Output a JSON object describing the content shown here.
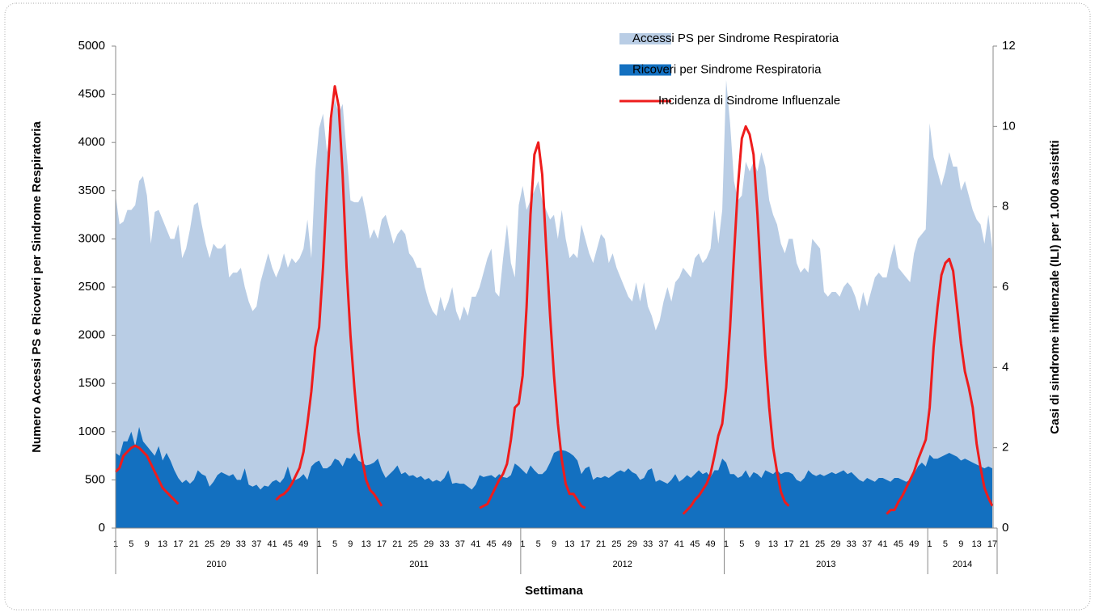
{
  "chart_data": {
    "type": "area-line",
    "y_label": "Numero Accessi PS e Ricoveri per Sindrome Respiratoria",
    "y2_label": "Casi di sindrome influenzale (ILI) per 1.000 assistiti",
    "x_label": "Settimana",
    "year_labels": [
      "2010",
      "2011",
      "2012",
      "2013",
      "2014"
    ],
    "categories": [
      "1",
      null,
      null,
      null,
      "5",
      null,
      null,
      null,
      "9",
      null,
      null,
      null,
      "13",
      null,
      null,
      null,
      "17",
      null,
      null,
      null,
      "21",
      null,
      null,
      null,
      "25",
      null,
      null,
      null,
      "29",
      null,
      null,
      null,
      "33",
      null,
      null,
      null,
      "37",
      null,
      null,
      null,
      "41",
      null,
      null,
      null,
      "45",
      null,
      null,
      null,
      "49",
      null,
      null,
      null,
      "1",
      null,
      null,
      null,
      "5",
      null,
      null,
      null,
      "9",
      null,
      null,
      null,
      "13",
      null,
      null,
      null,
      "17",
      null,
      null,
      null,
      "21",
      null,
      null,
      null,
      "25",
      null,
      null,
      null,
      "29",
      null,
      null,
      null,
      "33",
      null,
      null,
      null,
      "37",
      null,
      null,
      null,
      "41",
      null,
      null,
      null,
      "45",
      null,
      null,
      null,
      "49",
      null,
      null,
      null,
      "1",
      null,
      null,
      null,
      "5",
      null,
      null,
      null,
      "9",
      null,
      null,
      null,
      "13",
      null,
      null,
      null,
      "17",
      null,
      null,
      null,
      "21",
      null,
      null,
      null,
      "25",
      null,
      null,
      null,
      "29",
      null,
      null,
      null,
      "33",
      null,
      null,
      null,
      "37",
      null,
      null,
      null,
      "41",
      null,
      null,
      null,
      "45",
      null,
      null,
      null,
      "49",
      null,
      null,
      null,
      "1",
      null,
      null,
      null,
      "5",
      null,
      null,
      null,
      "9",
      null,
      null,
      null,
      "13",
      null,
      null,
      null,
      "17",
      null,
      null,
      null,
      "21",
      null,
      null,
      null,
      "25",
      null,
      null,
      null,
      "29",
      null,
      null,
      null,
      "33",
      null,
      null,
      null,
      "37",
      null,
      null,
      null,
      "41",
      null,
      null,
      null,
      "45",
      null,
      null,
      null,
      "49",
      null,
      null,
      null,
      "1",
      null,
      null,
      null,
      "5",
      null,
      null,
      null,
      "9",
      null,
      null,
      null,
      "13",
      null,
      null,
      null,
      "17"
    ],
    "series": [
      {
        "name": "Accessi PS per Sindrome Respiratoria",
        "kind": "area",
        "color": "#b9cde5",
        "values": [
          3450,
          3150,
          3180,
          3300,
          3300,
          3350,
          3600,
          3650,
          3450,
          2950,
          3280,
          3300,
          3200,
          3100,
          3000,
          3000,
          3150,
          2800,
          2900,
          3100,
          3350,
          3380,
          3150,
          2950,
          2800,
          2950,
          2900,
          2900,
          2950,
          2600,
          2650,
          2650,
          2700,
          2500,
          2350,
          2250,
          2300,
          2550,
          2700,
          2850,
          2700,
          2600,
          2700,
          2850,
          2700,
          2800,
          2750,
          2800,
          2900,
          3200,
          2800,
          3700,
          4150,
          4300,
          3900,
          4150,
          4450,
          4300,
          4400,
          3900,
          3400,
          3380,
          3380,
          3450,
          3250,
          3000,
          3100,
          3000,
          3200,
          3250,
          3100,
          2950,
          3050,
          3100,
          3050,
          2850,
          2800,
          2700,
          2700,
          2500,
          2350,
          2250,
          2200,
          2400,
          2250,
          2350,
          2500,
          2250,
          2150,
          2300,
          2200,
          2400,
          2400,
          2500,
          2650,
          2800,
          2900,
          2450,
          2400,
          2800,
          3150,
          2750,
          2600,
          3350,
          3550,
          3300,
          3400,
          3500,
          3600,
          3400,
          3300,
          3200,
          3250,
          3000,
          3300,
          3000,
          2800,
          2850,
          2800,
          3150,
          3000,
          2850,
          2750,
          2900,
          3050,
          3000,
          2750,
          2850,
          2700,
          2600,
          2500,
          2400,
          2350,
          2550,
          2350,
          2550,
          2300,
          2200,
          2050,
          2150,
          2350,
          2500,
          2350,
          2550,
          2600,
          2700,
          2650,
          2600,
          2800,
          2850,
          2750,
          2800,
          2900,
          3300,
          2950,
          3300,
          4650,
          4200,
          3600,
          3400,
          3450,
          3800,
          3700,
          3800,
          3700,
          3900,
          3750,
          3400,
          3250,
          3150,
          2950,
          2850,
          3000,
          3000,
          2750,
          2650,
          2700,
          2650,
          3000,
          2950,
          2900,
          2450,
          2400,
          2450,
          2450,
          2400,
          2500,
          2550,
          2500,
          2400,
          2250,
          2450,
          2300,
          2450,
          2600,
          2650,
          2600,
          2600,
          2800,
          2950,
          2700,
          2650,
          2600,
          2550,
          2850,
          3000,
          3050,
          3100,
          4200,
          3850,
          3700,
          3550,
          3700,
          3900,
          3750,
          3750,
          3500,
          3600,
          3450,
          3300,
          3200,
          3150,
          2950,
          3250,
          2900
        ]
      },
      {
        "name": "Ricoveri per Sindrome Respiratoria",
        "kind": "area",
        "color": "#1370c0",
        "values": [
          780,
          750,
          900,
          900,
          1000,
          850,
          1050,
          900,
          850,
          800,
          750,
          850,
          700,
          780,
          700,
          600,
          520,
          470,
          500,
          460,
          500,
          600,
          560,
          540,
          430,
          480,
          550,
          580,
          560,
          540,
          560,
          500,
          500,
          620,
          450,
          430,
          450,
          400,
          440,
          430,
          480,
          500,
          470,
          520,
          640,
          500,
          500,
          520,
          560,
          500,
          640,
          680,
          700,
          620,
          620,
          650,
          720,
          700,
          640,
          730,
          720,
          780,
          700,
          680,
          650,
          660,
          680,
          720,
          600,
          520,
          560,
          600,
          650,
          560,
          580,
          540,
          550,
          520,
          540,
          500,
          520,
          480,
          500,
          480,
          520,
          600,
          460,
          470,
          460,
          460,
          430,
          400,
          450,
          550,
          530,
          540,
          550,
          520,
          560,
          530,
          520,
          550,
          670,
          640,
          600,
          560,
          650,
          600,
          560,
          560,
          600,
          680,
          780,
          800,
          810,
          800,
          780,
          750,
          700,
          560,
          620,
          640,
          500,
          530,
          520,
          540,
          520,
          550,
          580,
          600,
          580,
          620,
          580,
          560,
          500,
          520,
          600,
          620,
          480,
          500,
          480,
          460,
          500,
          560,
          480,
          510,
          550,
          520,
          560,
          600,
          560,
          580,
          530,
          600,
          600,
          720,
          680,
          560,
          560,
          520,
          540,
          600,
          520,
          580,
          560,
          520,
          600,
          580,
          560,
          600,
          560,
          580,
          580,
          560,
          500,
          480,
          520,
          600,
          560,
          540,
          560,
          540,
          560,
          580,
          560,
          580,
          600,
          560,
          580,
          540,
          500,
          480,
          520,
          500,
          480,
          520,
          520,
          500,
          480,
          520,
          520,
          500,
          480,
          500,
          560,
          640,
          680,
          640,
          760,
          720,
          720,
          740,
          760,
          780,
          760,
          740,
          700,
          720,
          700,
          680,
          660,
          640,
          620,
          640,
          620
        ]
      },
      {
        "name": "Incidenza di Sindrome Influenzale",
        "kind": "line",
        "axis": "y2",
        "color": "#ee1c1c",
        "values": [
          1.4,
          1.5,
          1.8,
          1.9,
          2.0,
          2.05,
          2.0,
          1.9,
          1.8,
          1.6,
          1.4,
          1.2,
          1.0,
          0.9,
          0.8,
          0.7,
          0.6,
          null,
          null,
          null,
          null,
          null,
          null,
          null,
          null,
          null,
          null,
          null,
          null,
          null,
          null,
          null,
          null,
          null,
          null,
          null,
          null,
          null,
          null,
          null,
          null,
          0.7,
          0.8,
          0.85,
          0.95,
          1.1,
          1.3,
          1.5,
          1.9,
          2.6,
          3.4,
          4.5,
          5.0,
          6.5,
          8.5,
          10.2,
          11.0,
          10.5,
          8.8,
          6.5,
          4.8,
          3.5,
          2.4,
          1.7,
          1.2,
          0.95,
          0.85,
          0.7,
          0.55,
          null,
          null,
          null,
          null,
          null,
          null,
          null,
          null,
          null,
          null,
          null,
          null,
          null,
          null,
          null,
          null,
          null,
          null,
          null,
          null,
          null,
          null,
          null,
          null,
          0.5,
          0.55,
          0.6,
          0.8,
          1.0,
          1.2,
          1.35,
          1.6,
          2.2,
          3.0,
          3.1,
          3.8,
          5.5,
          7.8,
          9.3,
          9.6,
          8.8,
          7.0,
          5.3,
          3.8,
          2.6,
          1.7,
          1.1,
          0.85,
          0.85,
          0.7,
          0.55,
          0.5,
          null,
          null,
          null,
          null,
          null,
          null,
          null,
          null,
          null,
          null,
          null,
          null,
          null,
          null,
          null,
          null,
          null,
          null,
          null,
          null,
          null,
          null,
          null,
          null,
          0.35,
          0.45,
          0.55,
          0.7,
          0.8,
          0.95,
          1.1,
          1.35,
          1.8,
          2.3,
          2.6,
          3.5,
          5.0,
          6.8,
          8.5,
          9.7,
          10.0,
          9.8,
          9.3,
          7.8,
          6.0,
          4.3,
          3.0,
          2.0,
          1.4,
          0.9,
          0.65,
          0.55,
          null,
          null,
          null,
          null,
          null,
          null,
          null,
          null,
          null,
          null,
          null,
          null,
          null,
          null,
          null,
          null,
          null,
          null,
          null,
          null,
          null,
          null,
          null,
          null,
          0.35,
          0.45,
          0.45,
          0.65,
          0.8,
          1.0,
          1.2,
          1.4,
          1.7,
          1.95,
          2.2,
          3.0,
          4.5,
          5.5,
          6.3,
          6.6,
          6.7,
          6.4,
          5.5,
          4.6,
          3.9,
          3.5,
          3.0,
          2.1,
          1.5,
          1.0,
          0.75,
          0.55
        ]
      }
    ],
    "ylim": [
      0,
      5000
    ],
    "yticks": [
      0,
      500,
      1000,
      1500,
      2000,
      2500,
      3000,
      3500,
      4000,
      4500,
      5000
    ],
    "y2lim": [
      0,
      12
    ],
    "y2ticks": [
      0,
      2,
      4,
      6,
      8,
      10,
      12
    ],
    "grid": false,
    "legend": "top-right"
  }
}
